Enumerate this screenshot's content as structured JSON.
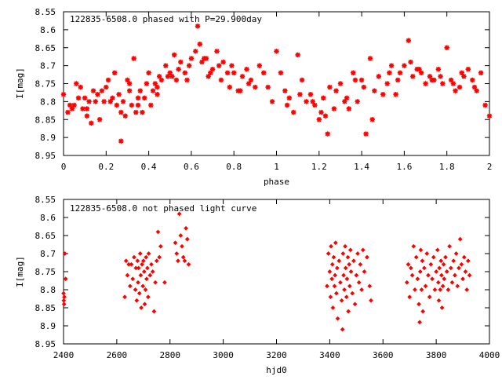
{
  "chart_data": [
    {
      "type": "scatter",
      "title": "122835-6508.0 phased with P=29.900day",
      "xlabel": "phase",
      "ylabel": "I[mag]",
      "xlim": [
        0,
        2
      ],
      "ylim": [
        8.95,
        8.55
      ],
      "y_inverted": true,
      "grid": false,
      "x_ticks": [
        "0",
        "0.2",
        "0.4",
        "0.6",
        "0.8",
        "1",
        "1.2",
        "1.4",
        "1.6",
        "1.8",
        "2"
      ],
      "y_ticks": [
        "8.55",
        "8.6",
        "8.65",
        "8.7",
        "8.75",
        "8.8",
        "8.85",
        "8.9",
        "8.95"
      ],
      "marker": "star",
      "color": "#ff0000",
      "series": [
        {
          "x": [
            0.0,
            0.02,
            0.03,
            0.05,
            0.06,
            0.07,
            0.08,
            0.09,
            0.1,
            0.11,
            0.12,
            0.13,
            0.14,
            0.15,
            0.16,
            0.17,
            0.18,
            0.2,
            0.21,
            0.22,
            0.24,
            0.25,
            0.26,
            0.27,
            0.28,
            0.29,
            0.3,
            0.31,
            0.32,
            0.33,
            0.34,
            0.35,
            0.36,
            0.37,
            0.38,
            0.39,
            0.4,
            0.41,
            0.42,
            0.43,
            0.44,
            0.45,
            0.46,
            0.48,
            0.49,
            0.5,
            0.52,
            0.53,
            0.55,
            0.57,
            0.58,
            0.6,
            0.62,
            0.63,
            0.64,
            0.65,
            0.67,
            0.68,
            0.7,
            0.72,
            0.73,
            0.75,
            0.77,
            0.78,
            0.8,
            0.82,
            0.84,
            0.86,
            0.88,
            0.9,
            0.92,
            0.94,
            0.96,
            0.98,
            1.0,
            1.02,
            1.04,
            1.06,
            1.08,
            1.1,
            1.12,
            1.14,
            1.16,
            1.18,
            1.2,
            1.21,
            1.22,
            1.24,
            1.25,
            1.27,
            1.28,
            1.3,
            1.32,
            1.34,
            1.36,
            1.38,
            1.4,
            1.41,
            1.42,
            1.44,
            1.46,
            1.48,
            1.5,
            1.52,
            1.54,
            1.56,
            1.58,
            1.6,
            1.62,
            1.64,
            1.66,
            1.68,
            1.7,
            1.72,
            1.74,
            1.76,
            1.78,
            1.8,
            1.82,
            1.84,
            1.86,
            1.88,
            1.9,
            1.92,
            1.94,
            1.96,
            1.98,
            2.0,
            0.04,
            0.11,
            0.19,
            0.23,
            0.27,
            0.31,
            0.35,
            0.44,
            0.51,
            0.54,
            0.59,
            0.66,
            0.69,
            0.74,
            0.79,
            0.83,
            0.87,
            1.05,
            1.11,
            1.17,
            1.23,
            1.33,
            1.37,
            1.45,
            1.53,
            1.57,
            1.63,
            1.67,
            1.73,
            1.77,
            1.83,
            1.87,
            1.93
          ],
          "y": [
            8.78,
            8.83,
            8.81,
            8.81,
            8.75,
            8.79,
            8.76,
            8.82,
            8.79,
            8.82,
            8.8,
            8.86,
            8.77,
            8.8,
            8.78,
            8.85,
            8.77,
            8.76,
            8.74,
            8.8,
            8.72,
            8.81,
            8.78,
            8.91,
            8.8,
            8.84,
            8.74,
            8.77,
            8.81,
            8.68,
            8.83,
            8.79,
            8.77,
            8.83,
            8.79,
            8.75,
            8.72,
            8.81,
            8.77,
            8.75,
            8.78,
            8.73,
            8.74,
            8.7,
            8.73,
            8.72,
            8.67,
            8.74,
            8.69,
            8.72,
            8.74,
            8.68,
            8.66,
            8.59,
            8.64,
            8.69,
            8.68,
            8.73,
            8.71,
            8.66,
            8.7,
            8.69,
            8.72,
            8.76,
            8.72,
            8.77,
            8.73,
            8.71,
            8.74,
            8.76,
            8.7,
            8.72,
            8.76,
            8.8,
            8.66,
            8.72,
            8.77,
            8.79,
            8.83,
            8.67,
            8.74,
            8.8,
            8.78,
            8.81,
            8.85,
            8.83,
            8.79,
            8.89,
            8.76,
            8.82,
            8.77,
            8.75,
            8.8,
            8.82,
            8.72,
            8.8,
            8.74,
            8.76,
            8.89,
            8.68,
            8.77,
            8.73,
            8.78,
            8.75,
            8.7,
            8.78,
            8.72,
            8.7,
            8.63,
            8.73,
            8.71,
            8.72,
            8.75,
            8.73,
            8.74,
            8.71,
            8.75,
            8.65,
            8.74,
            8.77,
            8.76,
            8.73,
            8.71,
            8.74,
            8.77,
            8.72,
            8.81,
            8.84,
            8.82,
            8.84,
            8.8,
            8.79,
            8.83,
            8.75,
            8.81,
            8.76,
            8.73,
            8.71,
            8.7,
            8.68,
            8.72,
            8.74,
            8.7,
            8.77,
            8.75,
            8.81,
            8.78,
            8.8,
            8.84,
            8.79,
            8.74,
            8.85,
            8.72,
            8.74,
            8.69,
            8.71,
            8.74,
            8.73,
            8.75,
            8.72,
            8.76
          ]
        }
      ]
    },
    {
      "type": "scatter",
      "title": "122835-6508.0 not phased light curve",
      "xlabel": "hjd0",
      "ylabel": "I[mag]",
      "xlim": [
        2400,
        4000
      ],
      "ylim": [
        8.95,
        8.55
      ],
      "y_inverted": true,
      "grid": false,
      "x_ticks": [
        "2400",
        "2600",
        "2800",
        "3000",
        "3200",
        "3400",
        "3600",
        "3800",
        "4000"
      ],
      "y_ticks": [
        "8.55",
        "8.6",
        "8.65",
        "8.7",
        "8.75",
        "8.8",
        "8.85",
        "8.9",
        "8.95"
      ],
      "marker": "diamond",
      "color": "#ff0000",
      "series": [
        {
          "x": [
            2400,
            2401,
            2402,
            2403,
            2405,
            2408,
            2630,
            2635,
            2640,
            2645,
            2650,
            2655,
            2660,
            2665,
            2670,
            2672,
            2675,
            2678,
            2680,
            2682,
            2685,
            2688,
            2690,
            2692,
            2695,
            2698,
            2700,
            2703,
            2705,
            2708,
            2710,
            2712,
            2715,
            2718,
            2720,
            2725,
            2730,
            2735,
            2740,
            2745,
            2750,
            2755,
            2760,
            2765,
            2780,
            2820,
            2825,
            2830,
            2835,
            2840,
            2845,
            2850,
            2855,
            2860,
            2865,
            2870,
            3390,
            3395,
            3400,
            3403,
            3405,
            3408,
            3410,
            3412,
            3415,
            3418,
            3420,
            3422,
            3425,
            3428,
            3430,
            3435,
            3440,
            3445,
            3448,
            3450,
            3452,
            3455,
            3458,
            3460,
            3463,
            3465,
            3468,
            3470,
            3473,
            3475,
            3478,
            3480,
            3485,
            3490,
            3495,
            3500,
            3505,
            3510,
            3515,
            3520,
            3525,
            3530,
            3540,
            3550,
            3555,
            3690,
            3695,
            3700,
            3705,
            3710,
            3715,
            3720,
            3725,
            3730,
            3735,
            3738,
            3740,
            3742,
            3745,
            3748,
            3750,
            3755,
            3760,
            3765,
            3770,
            3775,
            3780,
            3785,
            3790,
            3795,
            3800,
            3805,
            3808,
            3810,
            3812,
            3815,
            3818,
            3820,
            3822,
            3825,
            3828,
            3830,
            3835,
            3840,
            3845,
            3850,
            3855,
            3860,
            3865,
            3870,
            3875,
            3880,
            3885,
            3890,
            3895,
            3900,
            3905,
            3910,
            3915,
            3920,
            3925
          ],
          "y": [
            8.81,
            8.83,
            8.84,
            8.82,
            8.7,
            8.77,
            8.82,
            8.72,
            8.76,
            8.73,
            8.79,
            8.73,
            8.77,
            8.71,
            8.8,
            8.74,
            8.83,
            8.72,
            8.78,
            8.74,
            8.81,
            8.7,
            8.76,
            8.85,
            8.73,
            8.79,
            8.72,
            8.75,
            8.84,
            8.8,
            8.71,
            8.77,
            8.74,
            8.82,
            8.7,
            8.76,
            8.73,
            8.75,
            8.86,
            8.78,
            8.72,
            8.64,
            8.71,
            8.68,
            8.78,
            8.67,
            8.7,
            8.72,
            8.59,
            8.65,
            8.68,
            8.71,
            8.72,
            8.63,
            8.66,
            8.73,
            8.79,
            8.7,
            8.75,
            8.82,
            8.68,
            8.77,
            8.73,
            8.85,
            8.71,
            8.79,
            8.76,
            8.67,
            8.81,
            8.74,
            8.88,
            8.72,
            8.78,
            8.83,
            8.91,
            8.7,
            8.76,
            8.8,
            8.68,
            8.74,
            8.82,
            8.77,
            8.71,
            8.86,
            8.73,
            8.79,
            8.69,
            8.75,
            8.81,
            8.72,
            8.84,
            8.76,
            8.7,
            8.78,
            8.73,
            8.8,
            8.69,
            8.75,
            8.71,
            8.79,
            8.83,
            8.78,
            8.73,
            8.82,
            8.74,
            8.76,
            8.68,
            8.8,
            8.71,
            8.77,
            8.84,
            8.89,
            8.75,
            8.69,
            8.8,
            8.72,
            8.86,
            8.74,
            8.79,
            8.7,
            8.76,
            8.82,
            8.73,
            8.77,
            8.71,
            8.8,
            8.75,
            8.69,
            8.78,
            8.83,
            8.74,
            8.8,
            8.72,
            8.76,
            8.85,
            8.79,
            8.73,
            8.77,
            8.71,
            8.75,
            8.8,
            8.68,
            8.74,
            8.78,
            8.72,
            8.76,
            8.7,
            8.79,
            8.74,
            8.66,
            8.73,
            8.77,
            8.71,
            8.75,
            8.8,
            8.72,
            8.76
          ]
        }
      ]
    }
  ]
}
